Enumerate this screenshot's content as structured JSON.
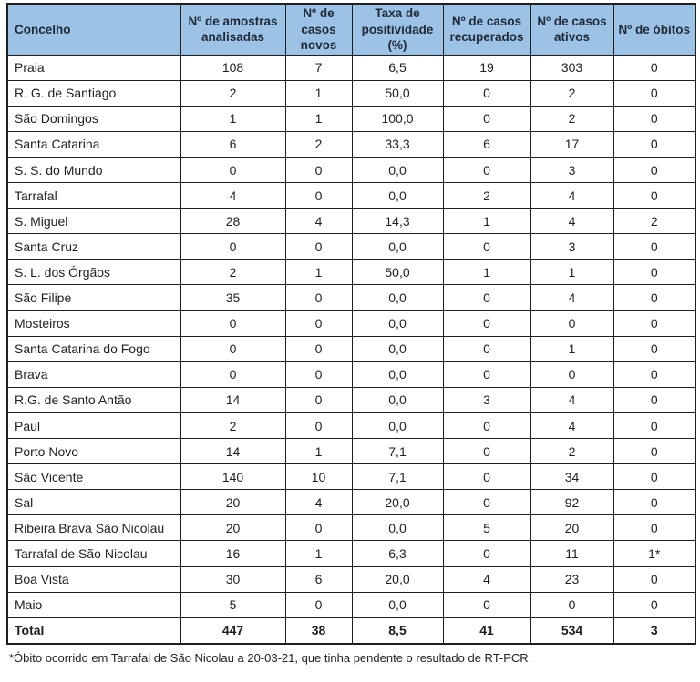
{
  "table": {
    "columns": [
      {
        "label": "Concelho"
      },
      {
        "label": "Nº de amostras analisadas"
      },
      {
        "label": "Nº de casos novos"
      },
      {
        "label": "Taxa de positividade (%)"
      },
      {
        "label": "Nº de casos recuperados"
      },
      {
        "label": "Nº de casos ativos"
      },
      {
        "label": "Nº de óbitos"
      }
    ],
    "rows": [
      {
        "concelho": "Praia",
        "amostras": "108",
        "novos": "7",
        "taxa": "6,5",
        "recuperados": "19",
        "ativos": "303",
        "obitos": "0"
      },
      {
        "concelho": "R. G. de Santiago",
        "amostras": "2",
        "novos": "1",
        "taxa": "50,0",
        "recuperados": "0",
        "ativos": "2",
        "obitos": "0"
      },
      {
        "concelho": "São Domingos",
        "amostras": "1",
        "novos": "1",
        "taxa": "100,0",
        "recuperados": "0",
        "ativos": "2",
        "obitos": "0"
      },
      {
        "concelho": "Santa Catarina",
        "amostras": "6",
        "novos": "2",
        "taxa": "33,3",
        "recuperados": "6",
        "ativos": "17",
        "obitos": "0"
      },
      {
        "concelho": "S. S. do Mundo",
        "amostras": "0",
        "novos": "0",
        "taxa": "0,0",
        "recuperados": "0",
        "ativos": "3",
        "obitos": "0"
      },
      {
        "concelho": "Tarrafal",
        "amostras": "4",
        "novos": "0",
        "taxa": "0,0",
        "recuperados": "2",
        "ativos": "4",
        "obitos": "0"
      },
      {
        "concelho": "S. Miguel",
        "amostras": "28",
        "novos": "4",
        "taxa": "14,3",
        "recuperados": "1",
        "ativos": "4",
        "obitos": "2"
      },
      {
        "concelho": "Santa Cruz",
        "amostras": "0",
        "novos": "0",
        "taxa": "0,0",
        "recuperados": "0",
        "ativos": "3",
        "obitos": "0"
      },
      {
        "concelho": "S. L. dos Órgãos",
        "amostras": "2",
        "novos": "1",
        "taxa": "50,0",
        "recuperados": "1",
        "ativos": "1",
        "obitos": "0"
      },
      {
        "concelho": "São Filipe",
        "amostras": "35",
        "novos": "0",
        "taxa": "0,0",
        "recuperados": "0",
        "ativos": "4",
        "obitos": "0"
      },
      {
        "concelho": "Mosteiros",
        "amostras": "0",
        "novos": "0",
        "taxa": "0,0",
        "recuperados": "0",
        "ativos": "0",
        "obitos": "0"
      },
      {
        "concelho": "Santa Catarina do Fogo",
        "amostras": "0",
        "novos": "0",
        "taxa": "0,0",
        "recuperados": "0",
        "ativos": "1",
        "obitos": "0"
      },
      {
        "concelho": "Brava",
        "amostras": "0",
        "novos": "0",
        "taxa": "0,0",
        "recuperados": "0",
        "ativos": "0",
        "obitos": "0"
      },
      {
        "concelho": "R.G. de Santo Antão",
        "amostras": "14",
        "novos": "0",
        "taxa": "0,0",
        "recuperados": "3",
        "ativos": "4",
        "obitos": "0"
      },
      {
        "concelho": "Paul",
        "amostras": "2",
        "novos": "0",
        "taxa": "0,0",
        "recuperados": "0",
        "ativos": "4",
        "obitos": "0"
      },
      {
        "concelho": "Porto Novo",
        "amostras": "14",
        "novos": "1",
        "taxa": "7,1",
        "recuperados": "0",
        "ativos": "2",
        "obitos": "0"
      },
      {
        "concelho": "São Vicente",
        "amostras": "140",
        "novos": "10",
        "taxa": "7,1",
        "recuperados": "0",
        "ativos": "34",
        "obitos": "0"
      },
      {
        "concelho": "Sal",
        "amostras": "20",
        "novos": "4",
        "taxa": "20,0",
        "recuperados": "0",
        "ativos": "92",
        "obitos": "0"
      },
      {
        "concelho": "Ribeira Brava São Nicolau",
        "amostras": "20",
        "novos": "0",
        "taxa": "0,0",
        "recuperados": "5",
        "ativos": "20",
        "obitos": "0"
      },
      {
        "concelho": "Tarrafal de São Nicolau",
        "amostras": "16",
        "novos": "1",
        "taxa": "6,3",
        "recuperados": "0",
        "ativos": "11",
        "obitos": "1*"
      },
      {
        "concelho": "Boa Vista",
        "amostras": "30",
        "novos": "6",
        "taxa": "20,0",
        "recuperados": "4",
        "ativos": "23",
        "obitos": "0"
      },
      {
        "concelho": "Maio",
        "amostras": "5",
        "novos": "0",
        "taxa": "0,0",
        "recuperados": "0",
        "ativos": "0",
        "obitos": "0"
      }
    ],
    "total_row": {
      "concelho": "Total",
      "amostras": "447",
      "novos": "38",
      "taxa": "8,5",
      "recuperados": "41",
      "ativos": "534",
      "obitos": "3"
    }
  },
  "footnote": "*Óbito ocorrido em Tarrafal de São Nicolau a 20-03-21, que tinha pendente o resultado de RT-PCR.",
  "colors": {
    "header_bg": "#9CC2E5",
    "header_text": "#1E2A38",
    "border": "#1f1f1f",
    "body_text": "#1f1f1f"
  }
}
